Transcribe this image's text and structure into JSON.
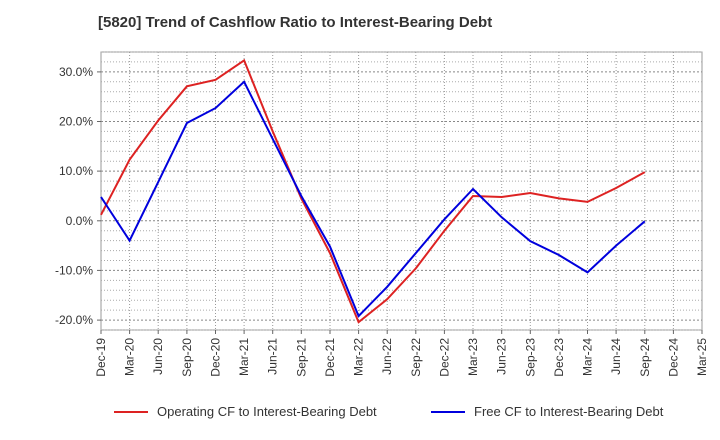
{
  "title": "[5820]  Trend of Cashflow Ratio to Interest-Bearing Debt",
  "chart_data": {
    "type": "line",
    "title": "[5820]  Trend of Cashflow Ratio to Interest-Bearing Debt",
    "xlabel": "",
    "ylabel": "",
    "categories": [
      "Dec-19",
      "Mar-20",
      "Jun-20",
      "Sep-20",
      "Dec-20",
      "Mar-21",
      "Jun-21",
      "Sep-21",
      "Dec-21",
      "Mar-22",
      "Jun-22",
      "Sep-22",
      "Dec-22",
      "Mar-23",
      "Jun-23",
      "Sep-23",
      "Dec-23",
      "Mar-24",
      "Jun-24",
      "Sep-24",
      "Dec-24",
      "Mar-25"
    ],
    "ylim": [
      -22,
      34
    ],
    "yticks": [
      -20,
      -10,
      0,
      10,
      20,
      30
    ],
    "ytick_labels": [
      "-20.0%",
      "-10.0%",
      "0.0%",
      "10.0%",
      "20.0%",
      "30.0%"
    ],
    "grid": true,
    "legend_position": "bottom",
    "series": [
      {
        "name": "Operating CF to Interest-Bearing Debt",
        "color": "#dd2222",
        "values": [
          1.2,
          12.3,
          20.2,
          27.1,
          28.4,
          32.3,
          18.0,
          4.5,
          -6.5,
          -20.4,
          -15.8,
          -9.6,
          -2.0,
          5.0,
          4.8,
          5.6,
          4.5,
          3.8,
          6.6,
          9.8,
          null,
          null
        ]
      },
      {
        "name": "Free CF to Interest-Bearing Debt",
        "color": "#0000dd",
        "values": [
          4.8,
          -4.0,
          7.8,
          19.7,
          22.7,
          28.0,
          16.5,
          5.0,
          -5.2,
          -19.2,
          -13.3,
          -6.5,
          0.3,
          6.4,
          0.7,
          -4.1,
          -6.9,
          -10.4,
          -5.0,
          -0.1,
          null,
          null
        ]
      }
    ]
  }
}
